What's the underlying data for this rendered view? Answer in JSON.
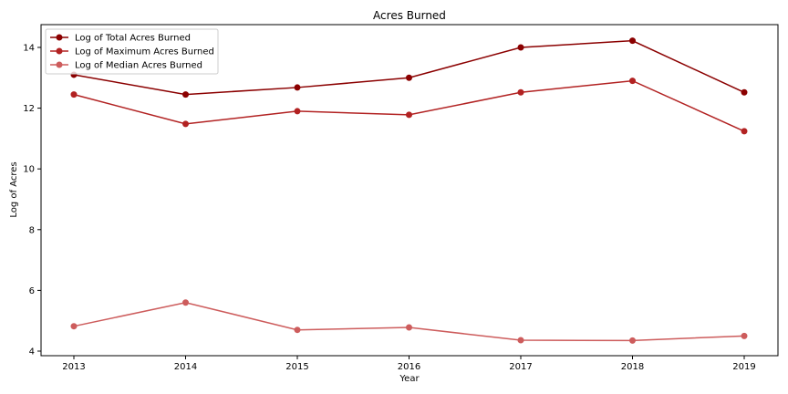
{
  "chart_data": {
    "type": "line",
    "title": "Acres Burned",
    "xlabel": "Year",
    "ylabel": "Log of Acres",
    "x": [
      2013,
      2014,
      2015,
      2016,
      2017,
      2018,
      2019
    ],
    "x_ticks": [
      "2013",
      "2014",
      "2015",
      "2016",
      "2017",
      "2018",
      "2019"
    ],
    "y_ticks": [
      "4",
      "6",
      "8",
      "10",
      "12",
      "14"
    ],
    "ylim": [
      3.85,
      14.75
    ],
    "grid": false,
    "legend_position": "top-left",
    "series": [
      {
        "name": "Log of Total Acres Burned",
        "color": "#8b0000",
        "values": [
          13.1,
          12.45,
          12.68,
          13.0,
          14.0,
          14.22,
          12.52
        ]
      },
      {
        "name": "Log of Maximum Acres Burned",
        "color": "#b22222",
        "values": [
          12.45,
          11.48,
          11.9,
          11.78,
          12.52,
          12.9,
          11.24
        ]
      },
      {
        "name": "Log of Median Acres Burned",
        "color": "#cd5c5c",
        "values": [
          4.82,
          5.6,
          4.7,
          4.78,
          4.36,
          4.35,
          4.5
        ]
      }
    ]
  }
}
